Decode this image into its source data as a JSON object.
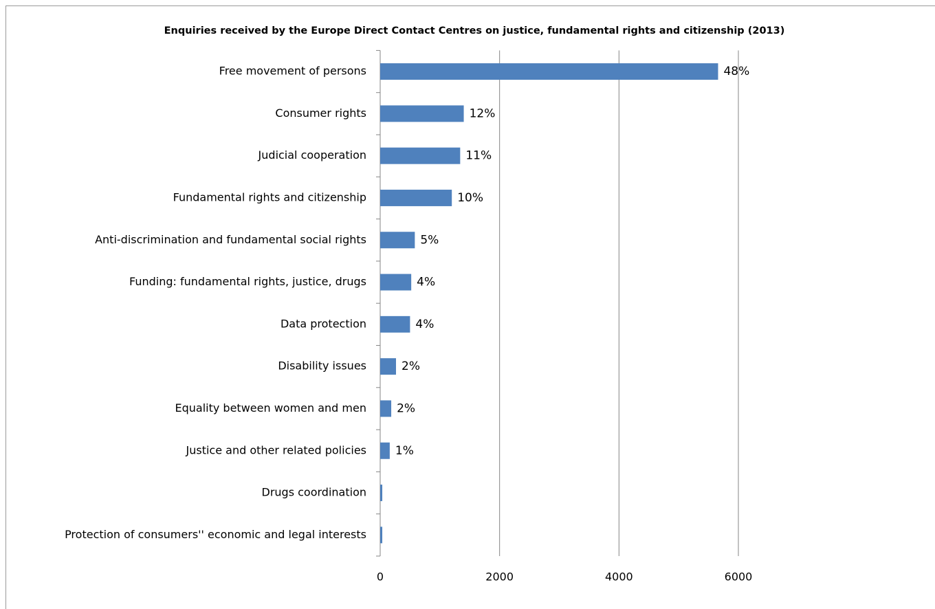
{
  "chart_data": {
    "type": "barh",
    "title": "Enquiries received by the Europe Direct Contact Centres on justice, fundamental rights and citizenship (2013)",
    "categories": [
      "Free movement of persons",
      "Consumer rights",
      "Judicial cooperation",
      "Fundamental rights and citizenship",
      "Anti-discrimination and fundamental social rights",
      "Funding: fundamental rights, justice, drugs",
      "Data protection",
      "Disability issues",
      "Equality between women and men",
      "Justice and other related policies",
      "Drugs coordination",
      "Protection of consumers'' economic and legal interests"
    ],
    "values": [
      5660,
      1400,
      1340,
      1200,
      580,
      520,
      500,
      265,
      185,
      160,
      35,
      35
    ],
    "value_labels": [
      "48%",
      "12%",
      "11%",
      "10%",
      "5%",
      "4%",
      "4%",
      "2%",
      "2%",
      "1%",
      null,
      null
    ],
    "color": "#4f81bd",
    "xlim": [
      0,
      6000
    ],
    "xticks": [
      0,
      2000,
      4000,
      6000
    ],
    "grid": true
  }
}
